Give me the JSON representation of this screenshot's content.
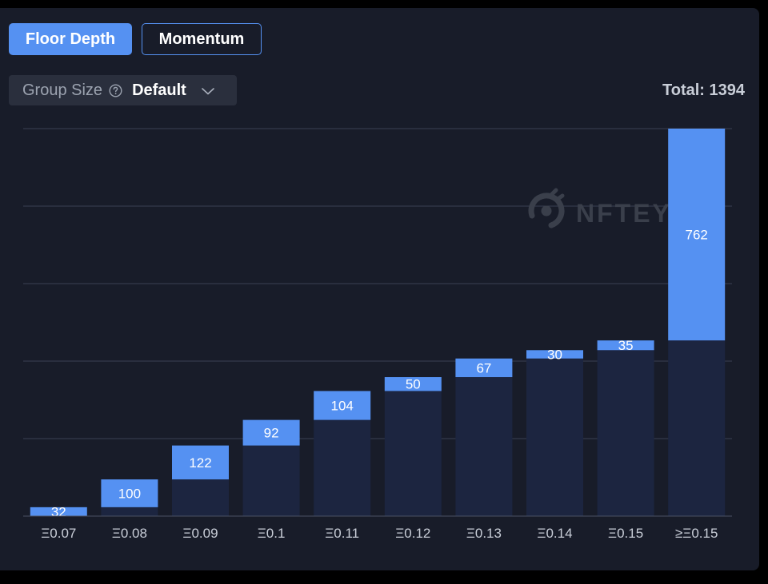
{
  "tabs": {
    "floor_depth": "Floor Depth",
    "momentum": "Momentum"
  },
  "group_size": {
    "label": "Group Size",
    "value": "Default"
  },
  "total": "Total: 1394",
  "watermark": "NFTEYE",
  "colors": {
    "background": "#181c29",
    "accent": "#5591f2",
    "base_bar": "#1c2540",
    "grid": "#3a4152"
  },
  "chart_data": {
    "type": "bar",
    "subtype": "waterfall",
    "categories": [
      "Ξ0.07",
      "Ξ0.08",
      "Ξ0.09",
      "Ξ0.1",
      "Ξ0.11",
      "Ξ0.12",
      "Ξ0.13",
      "Ξ0.14",
      "Ξ0.15",
      "≥Ξ0.15"
    ],
    "values": [
      32,
      100,
      122,
      92,
      104,
      50,
      67,
      30,
      35,
      762
    ],
    "ylim": [
      0,
      1394
    ],
    "grid": true,
    "legend": "none"
  }
}
